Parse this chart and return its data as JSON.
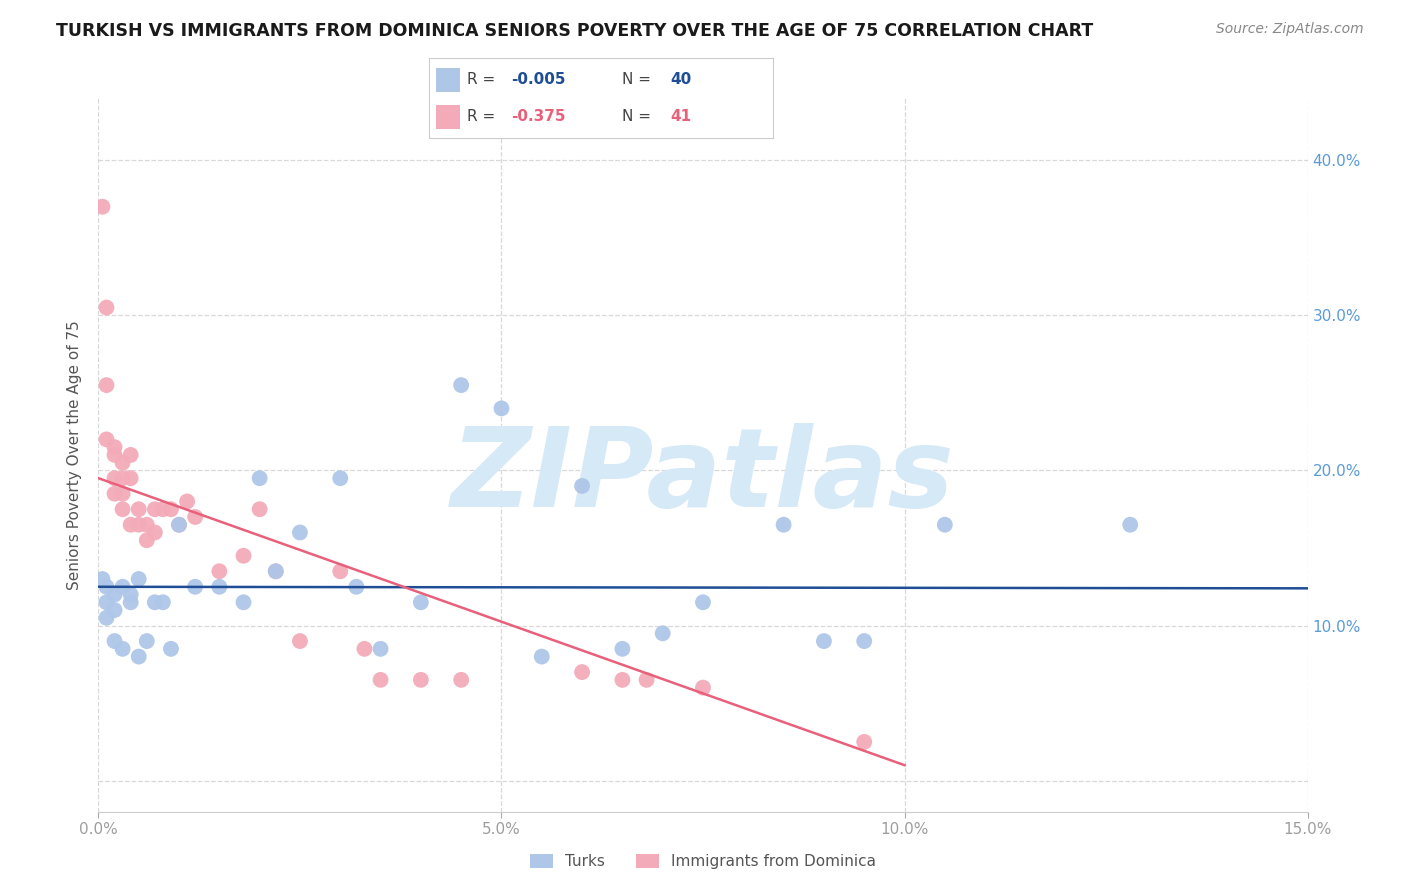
{
  "title": "TURKISH VS IMMIGRANTS FROM DOMINICA SENIORS POVERTY OVER THE AGE OF 75 CORRELATION CHART",
  "source": "Source: ZipAtlas.com",
  "ylabel": "Seniors Poverty Over the Age of 75",
  "xlim": [
    0.0,
    0.15
  ],
  "ylim": [
    -0.02,
    0.44
  ],
  "xticks": [
    0.0,
    0.05,
    0.1,
    0.15
  ],
  "xticklabels": [
    "0.0%",
    "5.0%",
    "10.0%",
    "15.0%"
  ],
  "yticks_right": [
    0.1,
    0.2,
    0.3,
    0.4
  ],
  "yticklabels_right": [
    "10.0%",
    "20.0%",
    "30.0%",
    "40.0%"
  ],
  "yticks_grid": [
    0.0,
    0.1,
    0.2,
    0.3,
    0.4
  ],
  "blue_color": "#aec6e8",
  "pink_color": "#f4abb9",
  "blue_line_color": "#1f4e96",
  "pink_line_color": "#e8607a",
  "blue_R": -0.005,
  "blue_N": 40,
  "pink_R": -0.375,
  "pink_N": 41,
  "blue_line_x": [
    0.0,
    0.15
  ],
  "blue_line_y": [
    0.125,
    0.124
  ],
  "pink_line_x": [
    0.0,
    0.1
  ],
  "pink_line_y": [
    0.195,
    0.01
  ],
  "turks_x": [
    0.0005,
    0.001,
    0.001,
    0.001,
    0.002,
    0.002,
    0.002,
    0.003,
    0.003,
    0.004,
    0.004,
    0.005,
    0.005,
    0.006,
    0.007,
    0.008,
    0.009,
    0.01,
    0.012,
    0.015,
    0.018,
    0.02,
    0.022,
    0.025,
    0.03,
    0.032,
    0.035,
    0.04,
    0.045,
    0.05,
    0.055,
    0.06,
    0.065,
    0.07,
    0.075,
    0.085,
    0.09,
    0.095,
    0.105,
    0.128
  ],
  "turks_y": [
    0.13,
    0.125,
    0.115,
    0.105,
    0.12,
    0.11,
    0.09,
    0.125,
    0.085,
    0.12,
    0.115,
    0.08,
    0.13,
    0.09,
    0.115,
    0.115,
    0.085,
    0.165,
    0.125,
    0.125,
    0.115,
    0.195,
    0.135,
    0.16,
    0.195,
    0.125,
    0.085,
    0.115,
    0.255,
    0.24,
    0.08,
    0.19,
    0.085,
    0.095,
    0.115,
    0.165,
    0.09,
    0.09,
    0.165,
    0.165
  ],
  "dominica_x": [
    0.0005,
    0.001,
    0.001,
    0.001,
    0.002,
    0.002,
    0.002,
    0.002,
    0.003,
    0.003,
    0.003,
    0.003,
    0.004,
    0.004,
    0.004,
    0.005,
    0.005,
    0.006,
    0.006,
    0.007,
    0.007,
    0.008,
    0.009,
    0.01,
    0.011,
    0.012,
    0.015,
    0.018,
    0.02,
    0.022,
    0.025,
    0.03,
    0.033,
    0.035,
    0.04,
    0.045,
    0.06,
    0.065,
    0.068,
    0.075,
    0.095
  ],
  "dominica_y": [
    0.37,
    0.305,
    0.255,
    0.22,
    0.215,
    0.21,
    0.195,
    0.185,
    0.205,
    0.195,
    0.185,
    0.175,
    0.21,
    0.195,
    0.165,
    0.175,
    0.165,
    0.165,
    0.155,
    0.175,
    0.16,
    0.175,
    0.175,
    0.165,
    0.18,
    0.17,
    0.135,
    0.145,
    0.175,
    0.135,
    0.09,
    0.135,
    0.085,
    0.065,
    0.065,
    0.065,
    0.07,
    0.065,
    0.065,
    0.06,
    0.025
  ],
  "watermark_text": "ZIPatlas",
  "watermark_color": "#d5e9f7",
  "background_color": "#ffffff",
  "grid_color": "#d8d8d8",
  "tick_label_color": "#9e9e9e",
  "right_tick_color": "#5b9bd5",
  "title_color": "#1a1a1a",
  "ylabel_color": "#555555"
}
